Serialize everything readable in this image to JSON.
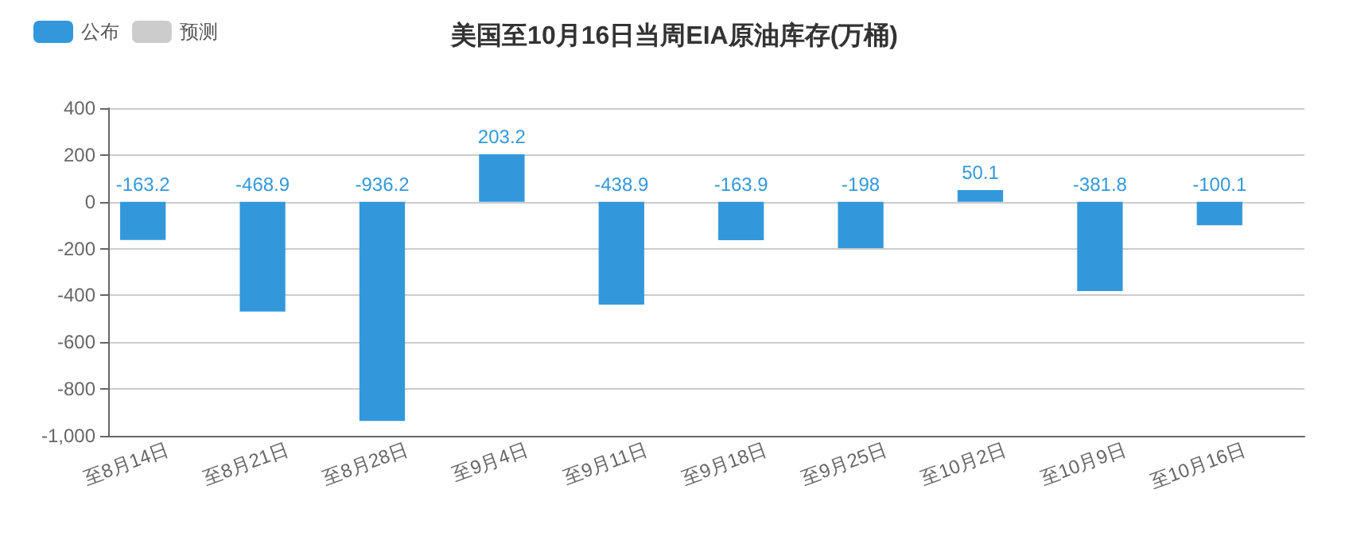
{
  "chart_data": {
    "type": "bar",
    "title": "美国至10月16日当周EIA原油库存(万桶)",
    "categories": [
      "至8月14日",
      "至8月21日",
      "至8月28日",
      "至9月4日",
      "至9月11日",
      "至9月18日",
      "至9月25日",
      "至10月2日",
      "至10月9日",
      "至10月16日"
    ],
    "series": [
      {
        "name": "公布",
        "color": "#3398db",
        "values": [
          -163.2,
          -468.9,
          -936.2,
          203.2,
          -438.9,
          -163.9,
          -198,
          50.1,
          -381.8,
          -100.1
        ]
      },
      {
        "name": "预测",
        "color": "#cccccc",
        "values": [
          null,
          null,
          null,
          null,
          null,
          null,
          null,
          null,
          null,
          null
        ]
      }
    ],
    "ylim": [
      -1000,
      400
    ],
    "yticks": [
      {
        "value": -1000,
        "label": "-1,000"
      },
      -800,
      -600,
      -400,
      -200,
      0,
      200,
      400
    ],
    "grid": "y",
    "legend": "top left",
    "data_labels": true
  }
}
